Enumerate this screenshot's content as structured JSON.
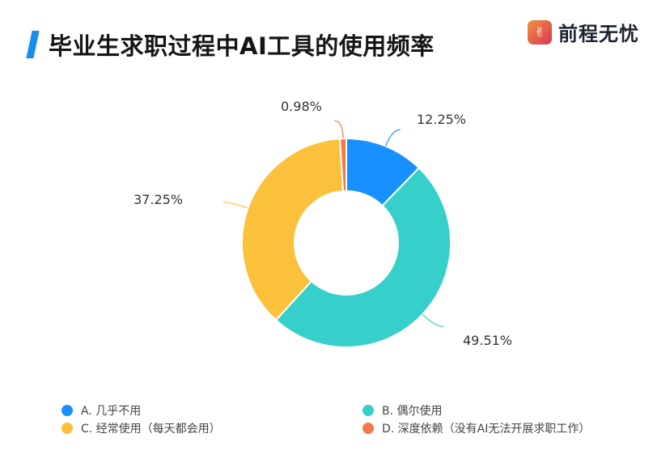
{
  "header": {
    "title": "毕业生求职过程中AI工具的使用频率",
    "logo_text": "前程无忧",
    "logo_icon": "hand-icon"
  },
  "chart_data": {
    "type": "pie",
    "variant": "donut",
    "title": "毕业生求职过程中AI工具的使用频率",
    "categories": [
      "A. 几乎不用",
      "B. 偶尔使用",
      "C. 经常使用（每天都会用）",
      "D. 深度依赖（没有AI无法开展求职工作）"
    ],
    "values": [
      12.25,
      49.51,
      37.25,
      0.98
    ],
    "labels": [
      "12.25%",
      "49.51%",
      "37.25%",
      "0.98%"
    ],
    "colors": [
      "#1890ff",
      "#36cfc9",
      "#fbc13a",
      "#f5784a"
    ],
    "legend_position": "bottom"
  },
  "legend": [
    {
      "label": "A. 几乎不用",
      "color": "#1890ff"
    },
    {
      "label": "B. 偶尔使用",
      "color": "#36cfc9"
    },
    {
      "label": "C. 经常使用（每天都会用）",
      "color": "#fbc13a"
    },
    {
      "label": "D. 深度依赖（没有AI无法开展求职工作）",
      "color": "#f5784a"
    }
  ]
}
